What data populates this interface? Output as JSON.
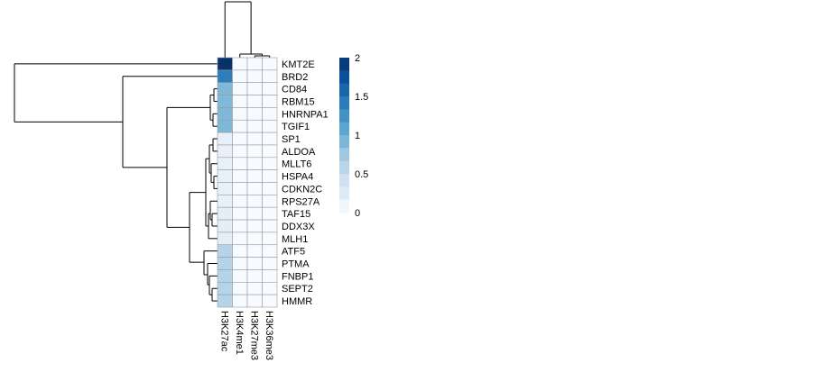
{
  "chart_data": {
    "type": "heatmap",
    "title": "",
    "rows": [
      "KMT2E",
      "BRD2",
      "CD84",
      "RBM15",
      "HNRNPA1",
      "TGIF1",
      "SP1",
      "ALDOA",
      "MLLT6",
      "HSPA4",
      "CDKN2C",
      "RPS27A",
      "TAF15",
      "DDX3X",
      "MLH1",
      "ATF5",
      "PTMA",
      "FNBP1",
      "SEPT2",
      "HMMR"
    ],
    "columns": [
      "H3K27ac",
      "H3K4me1",
      "H3K27me3",
      "H3K36me3"
    ],
    "values": [
      [
        2.0,
        0,
        0,
        0
      ],
      [
        1.4,
        0,
        0,
        0
      ],
      [
        0.9,
        0,
        0,
        0
      ],
      [
        0.9,
        0,
        0,
        0
      ],
      [
        0.9,
        0,
        0,
        0
      ],
      [
        0.9,
        0,
        0,
        0
      ],
      [
        0.15,
        0,
        0,
        0
      ],
      [
        0.15,
        0,
        0,
        0
      ],
      [
        0.15,
        0,
        0,
        0
      ],
      [
        0.15,
        0,
        0,
        0
      ],
      [
        0.15,
        0,
        0,
        0
      ],
      [
        0.15,
        0,
        0,
        0
      ],
      [
        0.2,
        0,
        0,
        0
      ],
      [
        0.2,
        0,
        0,
        0
      ],
      [
        0.2,
        0,
        0,
        0
      ],
      [
        0.6,
        0,
        0,
        0
      ],
      [
        0.6,
        0,
        0,
        0
      ],
      [
        0.6,
        0,
        0,
        0
      ],
      [
        0.6,
        0,
        0,
        0
      ],
      [
        0.6,
        0,
        0,
        0
      ]
    ],
    "color_scale": {
      "min": 0,
      "max": 2,
      "ticks": [
        "2",
        "1.5",
        "1",
        "0.5",
        "0"
      ],
      "colors": [
        "#f7fbff",
        "#deebf7",
        "#c6dbef",
        "#9ecae1",
        "#6baed6",
        "#4292c6",
        "#2171b5",
        "#08519c",
        "#08306b"
      ]
    },
    "row_dendrogram": true,
    "column_dendrogram": true,
    "legend_position": "right"
  }
}
